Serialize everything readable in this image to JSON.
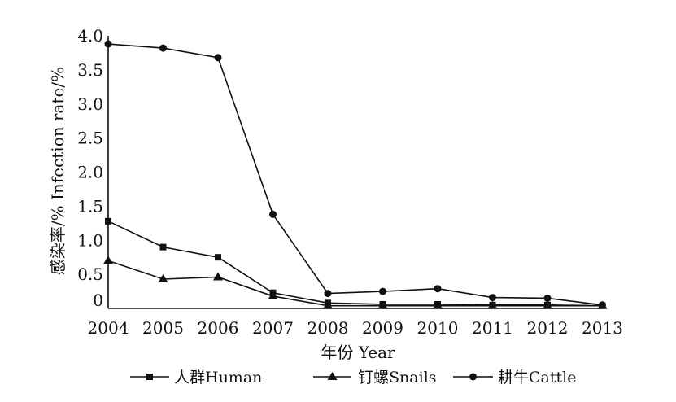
{
  "chart_data": {
    "type": "line",
    "categories": [
      "2004",
      "2005",
      "2006",
      "2007",
      "2008",
      "2009",
      "2010",
      "2011",
      "2012",
      "2013"
    ],
    "xlabel": "年份  Year",
    "ylabel": "感染率/%  Infection  rate/%",
    "ylim": [
      0,
      4.0
    ],
    "yticks": [
      {
        "value": 0,
        "label": "0"
      },
      {
        "value": 0.5,
        "label": "0.5"
      },
      {
        "value": 1.0,
        "label": "1.0"
      },
      {
        "value": 1.5,
        "label": "1.5"
      },
      {
        "value": 2.0,
        "label": "2.0"
      },
      {
        "value": 2.5,
        "label": "2.5"
      },
      {
        "value": 3.0,
        "label": "3.0"
      },
      {
        "value": 3.5,
        "label": "3.5"
      },
      {
        "value": 4.0,
        "label": "4.0"
      }
    ],
    "grid": false,
    "legend_position": "bottom",
    "series": [
      {
        "name": "人群Human",
        "marker": "square",
        "color": "#111111",
        "values": [
          1.28,
          0.9,
          0.75,
          0.23,
          0.08,
          0.06,
          0.06,
          0.05,
          0.05,
          0.04
        ]
      },
      {
        "name": "钉螺Snails",
        "marker": "triangle",
        "color": "#111111",
        "values": [
          0.7,
          0.43,
          0.46,
          0.18,
          0.04,
          0.04,
          0.04,
          0.04,
          0.04,
          0.04
        ]
      },
      {
        "name": "耕牛Cattle",
        "marker": "circle",
        "color": "#111111",
        "values": [
          3.88,
          3.82,
          3.68,
          1.38,
          0.22,
          0.25,
          0.29,
          0.16,
          0.15,
          0.05
        ]
      }
    ]
  }
}
